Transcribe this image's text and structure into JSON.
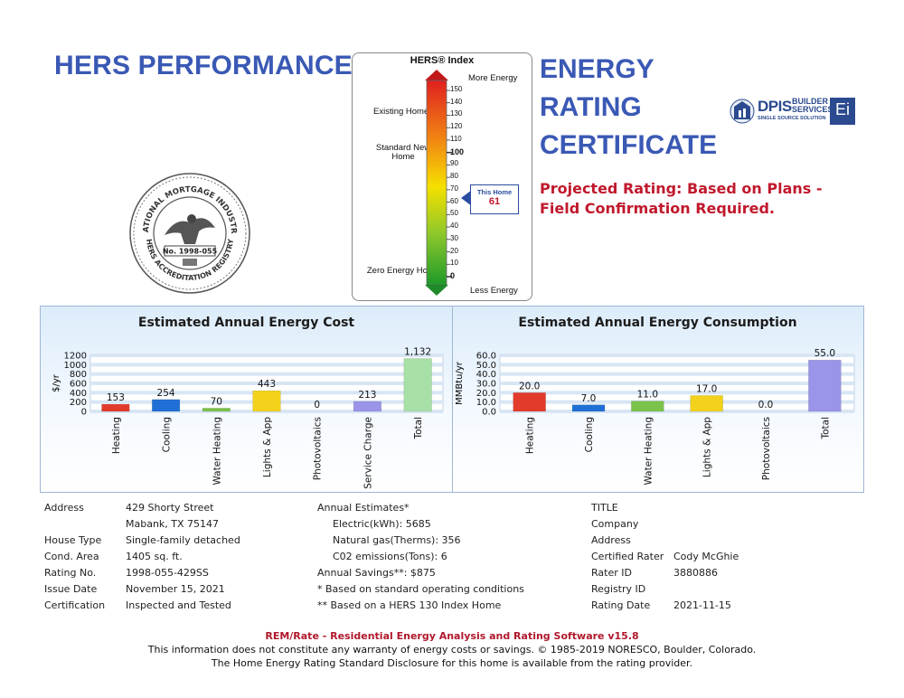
{
  "header": {
    "left_title": "HERS PERFORMANCE",
    "right_title_lines": [
      "ENERGY",
      "RATING",
      "CERTIFICATE"
    ],
    "projected_rating": "Projected Rating: Based on Plans - Field Confirmation Required."
  },
  "seal": {
    "outer_text": "NATIONAL MORTGAGE INDUSTRY",
    "bottom_text": "HERS ACCREDITATION REGISTRY",
    "number": "No. 1998-055"
  },
  "logo": {
    "brand_top": "DPIS",
    "brand_right_1": "BUILDER",
    "brand_right_2": "SERVICES",
    "tagline": "SINGLE SOURCE SOLUTION",
    "badge": "Ei",
    "colors": {
      "brand": "#2b4a8f",
      "badge_bg": "#2b4a8f"
    }
  },
  "hers": {
    "title": "HERS® Index",
    "more_energy": "More Energy",
    "less_energy": "Less Energy",
    "existing_homes": "Existing Homes",
    "standard_new_home": "Standard New Home",
    "zero_energy_home": "Zero Energy Home",
    "ticks": [
      "150",
      "140",
      "130",
      "120",
      "110",
      "100",
      "90",
      "80",
      "70",
      "60",
      "50",
      "40",
      "30",
      "20",
      "10",
      "0"
    ],
    "bold_ticks": [
      "100",
      "0"
    ],
    "this_home_label": "This Home",
    "this_home_value": "61",
    "scale_max": 150,
    "colors": {
      "top": "#e02020",
      "mid": "#f5e000",
      "bottom": "#1e9a2a",
      "arrow_up": "#c21818",
      "arrow_down": "#1e8a2a"
    }
  },
  "chart_data": [
    {
      "type": "bar",
      "title": "Estimated Annual Energy Cost",
      "ylabel": "$/yr",
      "ylim": [
        0,
        1200
      ],
      "yticks": [
        "0",
        "200",
        "400",
        "600",
        "800",
        "1000",
        "1200"
      ],
      "categories": [
        "Heating",
        "Cooling",
        "Water Heating",
        "Lights & App",
        "Photovoltaics",
        "Service Charge",
        "Total"
      ],
      "values": [
        153,
        254,
        70,
        443,
        0,
        213,
        1132
      ],
      "value_labels": [
        "153",
        "254",
        "70",
        "443",
        "0",
        "213",
        "1,132"
      ],
      "colors": [
        "#e33b2b",
        "#1f6fd6",
        "#7bc24a",
        "#f2d21a",
        "#f2d21a",
        "#9a95e8",
        "#a7e0a6"
      ],
      "grid": true
    },
    {
      "type": "bar",
      "title": "Estimated Annual Energy Consumption",
      "ylabel": "MMBtu/yr",
      "ylim": [
        0,
        60
      ],
      "yticks": [
        "0.0",
        "10.0",
        "20.0",
        "30.0",
        "40.0",
        "50.0",
        "60.0"
      ],
      "categories": [
        "Heating",
        "Cooling",
        "Water Heating",
        "Lights & App",
        "Photovoltaics",
        "Total"
      ],
      "values": [
        20.0,
        7.0,
        11.0,
        17.0,
        0.0,
        55.0
      ],
      "value_labels": [
        "20.0",
        "7.0",
        "11.0",
        "17.0",
        "0.0",
        "55.0"
      ],
      "colors": [
        "#e33b2b",
        "#1f6fd6",
        "#7bc24a",
        "#f2d21a",
        "#f2d21a",
        "#9a95e8"
      ],
      "grid": true
    }
  ],
  "info": {
    "address_label": "Address",
    "address_line1": "429 Shorty Street",
    "address_line2": "Mabank, TX 75147",
    "house_type_label": "House Type",
    "house_type": "Single-family detached",
    "cond_area_label": "Cond. Area",
    "cond_area": "1405 sq. ft.",
    "rating_no_label": "Rating No.",
    "rating_no": "1998-055-429SS",
    "issue_date_label": "Issue Date",
    "issue_date": "November 15, 2021",
    "certification_label": "Certification",
    "certification": "Inspected and Tested",
    "annual_estimates": "Annual Estimates*",
    "electric": "Electric(kWh):  5685",
    "natural_gas": "Natural gas(Therms):  356",
    "co2": "C02 emissions(Tons): 6",
    "annual_savings": "Annual Savings**:  $875",
    "note1": "* Based on standard operating conditions",
    "note2": "** Based on a HERS 130 Index Home",
    "title_label": "TITLE",
    "company_label": "Company",
    "address2_label": "Address",
    "certified_rater_label": "Certified Rater",
    "certified_rater": "Cody McGhie",
    "rater_id_label": "Rater ID",
    "rater_id": "3880886",
    "registry_id_label": "Registry ID",
    "rating_date_label": "Rating Date",
    "rating_date": "2021-11-15"
  },
  "footer": {
    "software": "REM/Rate - Residential Energy Analysis and Rating Software v15.8",
    "disclaimer": "This information does not constitute any warranty of energy costs or savings. © 1985-2019 NORESCO, Boulder, Colorado.",
    "disclosure": "The Home Energy Rating Standard Disclosure for this home is available from the rating provider."
  }
}
